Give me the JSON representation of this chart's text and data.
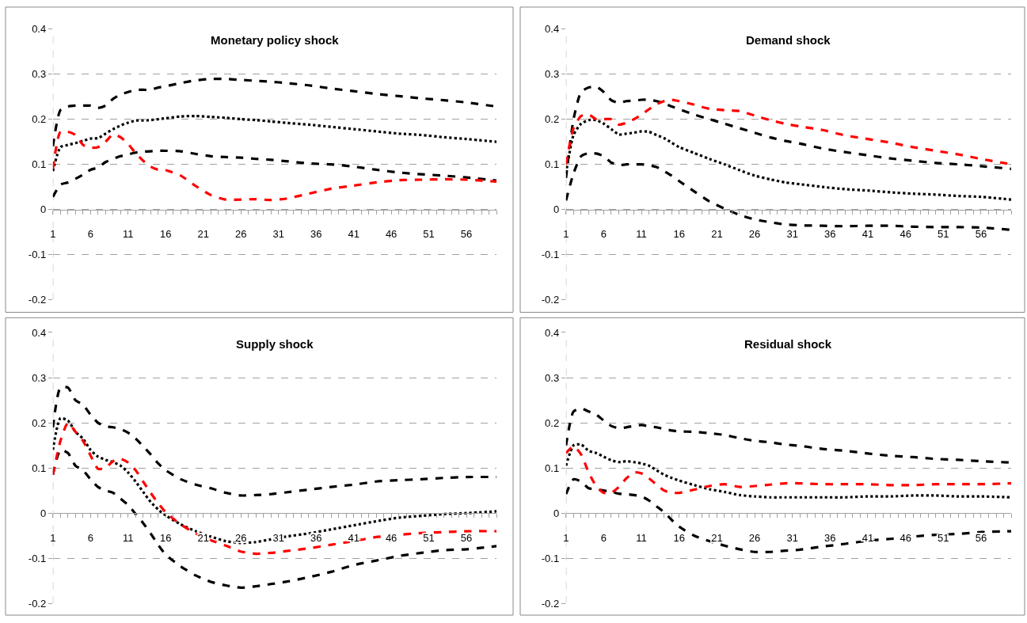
{
  "chart_data": [
    {
      "type": "line",
      "title": "Monetary policy shock",
      "x": [
        1,
        2,
        3,
        4,
        5,
        6,
        7,
        8,
        9,
        10,
        11,
        12,
        13,
        14,
        15,
        16,
        18,
        20,
        22,
        24,
        26,
        28,
        30,
        32,
        35,
        38,
        41,
        44,
        47,
        50,
        53,
        56,
        60
      ],
      "xlim": [
        1,
        60
      ],
      "xticks": [
        1,
        6,
        11,
        16,
        21,
        26,
        31,
        36,
        41,
        46,
        51,
        56
      ],
      "ylim": [
        -0.2,
        0.4
      ],
      "yticks": [
        -0.2,
        -0.1,
        0,
        0.1,
        0.2,
        0.3,
        0.4
      ],
      "grid": "y",
      "series": [
        {
          "color": "#000000",
          "line_style": "dashed",
          "values": [
            0.14,
            0.22,
            0.228,
            0.23,
            0.23,
            0.23,
            0.225,
            0.23,
            0.245,
            0.255,
            0.26,
            0.265,
            0.265,
            0.265,
            0.27,
            0.273,
            0.28,
            0.286,
            0.289,
            0.289,
            0.287,
            0.285,
            0.283,
            0.28,
            0.275,
            0.268,
            0.262,
            0.256,
            0.251,
            0.246,
            0.242,
            0.237,
            0.228
          ]
        },
        {
          "color": "#000000",
          "line_style": "dotted",
          "values": [
            0.085,
            0.138,
            0.143,
            0.147,
            0.152,
            0.157,
            0.158,
            0.168,
            0.178,
            0.186,
            0.192,
            0.197,
            0.197,
            0.198,
            0.2,
            0.202,
            0.206,
            0.207,
            0.205,
            0.203,
            0.2,
            0.198,
            0.195,
            0.192,
            0.188,
            0.183,
            0.178,
            0.173,
            0.168,
            0.165,
            0.16,
            0.156,
            0.15
          ]
        },
        {
          "color": "#000000",
          "line_style": "dashed",
          "values": [
            0.028,
            0.055,
            0.06,
            0.068,
            0.077,
            0.088,
            0.093,
            0.105,
            0.112,
            0.118,
            0.122,
            0.126,
            0.128,
            0.129,
            0.13,
            0.13,
            0.129,
            0.123,
            0.118,
            0.116,
            0.115,
            0.112,
            0.11,
            0.107,
            0.102,
            0.1,
            0.095,
            0.088,
            0.082,
            0.078,
            0.075,
            0.071,
            0.064
          ]
        },
        {
          "color": "#ff0000",
          "line_style": "dashed",
          "values": [
            0.09,
            0.172,
            0.172,
            0.165,
            0.143,
            0.137,
            0.138,
            0.15,
            0.166,
            0.16,
            0.145,
            0.125,
            0.108,
            0.095,
            0.088,
            0.087,
            0.075,
            0.052,
            0.032,
            0.022,
            0.022,
            0.023,
            0.021,
            0.024,
            0.035,
            0.046,
            0.053,
            0.06,
            0.065,
            0.066,
            0.067,
            0.066,
            0.062
          ]
        }
      ]
    },
    {
      "type": "line",
      "title": "Demand shock",
      "x": [
        1,
        2,
        3,
        4,
        5,
        6,
        7,
        8,
        9,
        10,
        11,
        12,
        13,
        14,
        15,
        16,
        18,
        20,
        22,
        24,
        26,
        28,
        30,
        32,
        35,
        38,
        41,
        44,
        47,
        50,
        53,
        56,
        60
      ],
      "xlim": [
        1,
        60
      ],
      "xticks": [
        1,
        6,
        11,
        16,
        21,
        26,
        31,
        36,
        41,
        46,
        51,
        56
      ],
      "ylim": [
        -0.2,
        0.4
      ],
      "yticks": [
        -0.2,
        -0.1,
        0,
        0.1,
        0.2,
        0.3,
        0.4
      ],
      "grid": "y",
      "series": [
        {
          "color": "#000000",
          "line_style": "dashed",
          "values": [
            0.07,
            0.2,
            0.26,
            0.27,
            0.272,
            0.26,
            0.242,
            0.236,
            0.24,
            0.241,
            0.243,
            0.243,
            0.24,
            0.235,
            0.228,
            0.222,
            0.21,
            0.2,
            0.19,
            0.18,
            0.17,
            0.16,
            0.152,
            0.146,
            0.135,
            0.127,
            0.12,
            0.113,
            0.108,
            0.103,
            0.1,
            0.096,
            0.09
          ]
        },
        {
          "color": "#000000",
          "line_style": "dotted",
          "values": [
            0.08,
            0.165,
            0.19,
            0.198,
            0.198,
            0.19,
            0.178,
            0.166,
            0.168,
            0.17,
            0.173,
            0.172,
            0.165,
            0.158,
            0.148,
            0.138,
            0.125,
            0.112,
            0.1,
            0.087,
            0.075,
            0.067,
            0.06,
            0.056,
            0.05,
            0.045,
            0.042,
            0.038,
            0.035,
            0.033,
            0.03,
            0.028,
            0.022
          ]
        },
        {
          "color": "#000000",
          "line_style": "dashed",
          "values": [
            0.02,
            0.08,
            0.118,
            0.125,
            0.124,
            0.118,
            0.104,
            0.098,
            0.1,
            0.1,
            0.1,
            0.098,
            0.094,
            0.085,
            0.075,
            0.063,
            0.04,
            0.018,
            0.002,
            -0.012,
            -0.022,
            -0.028,
            -0.033,
            -0.035,
            -0.036,
            -0.037,
            -0.036,
            -0.036,
            -0.038,
            -0.039,
            -0.039,
            -0.04,
            -0.045
          ]
        },
        {
          "color": "#ff0000",
          "line_style": "dashed",
          "values": [
            0.1,
            0.18,
            0.207,
            0.21,
            0.2,
            0.2,
            0.2,
            0.188,
            0.192,
            0.2,
            0.21,
            0.222,
            0.233,
            0.24,
            0.243,
            0.24,
            0.232,
            0.223,
            0.22,
            0.218,
            0.208,
            0.198,
            0.19,
            0.184,
            0.176,
            0.164,
            0.156,
            0.148,
            0.138,
            0.13,
            0.122,
            0.112,
            0.1
          ]
        }
      ]
    },
    {
      "type": "line",
      "title": "Supply shock",
      "x": [
        1,
        2,
        3,
        4,
        5,
        6,
        7,
        8,
        9,
        10,
        11,
        12,
        13,
        14,
        15,
        16,
        18,
        20,
        22,
        24,
        26,
        28,
        30,
        32,
        35,
        38,
        41,
        44,
        47,
        50,
        53,
        56,
        60
      ],
      "xlim": [
        1,
        60
      ],
      "xticks": [
        1,
        6,
        11,
        16,
        21,
        26,
        31,
        36,
        41,
        46,
        51,
        56
      ],
      "ylim": [
        -0.2,
        0.4
      ],
      "yticks": [
        -0.2,
        -0.1,
        0,
        0.1,
        0.2,
        0.3,
        0.4
      ],
      "grid": "y",
      "series": [
        {
          "color": "#000000",
          "line_style": "dashed",
          "values": [
            0.19,
            0.278,
            0.278,
            0.25,
            0.24,
            0.218,
            0.2,
            0.192,
            0.19,
            0.186,
            0.178,
            0.165,
            0.148,
            0.13,
            0.11,
            0.095,
            0.075,
            0.063,
            0.055,
            0.045,
            0.039,
            0.04,
            0.042,
            0.046,
            0.052,
            0.058,
            0.063,
            0.07,
            0.073,
            0.075,
            0.078,
            0.08,
            0.08
          ]
        },
        {
          "color": "#000000",
          "line_style": "dotted",
          "values": [
            0.14,
            0.21,
            0.205,
            0.18,
            0.165,
            0.14,
            0.125,
            0.118,
            0.113,
            0.105,
            0.09,
            0.07,
            0.047,
            0.025,
            0.008,
            -0.005,
            -0.025,
            -0.04,
            -0.052,
            -0.062,
            -0.066,
            -0.064,
            -0.058,
            -0.052,
            -0.045,
            -0.036,
            -0.027,
            -0.018,
            -0.01,
            -0.006,
            -0.002,
            0,
            0.004
          ]
        },
        {
          "color": "#000000",
          "line_style": "dashed",
          "values": [
            0.085,
            0.14,
            0.133,
            0.105,
            0.095,
            0.075,
            0.058,
            0.05,
            0.045,
            0.032,
            0.018,
            -0.002,
            -0.022,
            -0.045,
            -0.07,
            -0.092,
            -0.118,
            -0.138,
            -0.152,
            -0.16,
            -0.165,
            -0.162,
            -0.157,
            -0.152,
            -0.142,
            -0.13,
            -0.115,
            -0.105,
            -0.095,
            -0.088,
            -0.082,
            -0.08,
            -0.073
          ]
        },
        {
          "color": "#ff0000",
          "line_style": "dashed",
          "values": [
            0.085,
            0.16,
            0.2,
            0.18,
            0.16,
            0.128,
            0.098,
            0.1,
            0.115,
            0.12,
            0.112,
            0.095,
            0.07,
            0.045,
            0.022,
            0.002,
            -0.025,
            -0.045,
            -0.06,
            -0.072,
            -0.085,
            -0.09,
            -0.088,
            -0.084,
            -0.078,
            -0.07,
            -0.062,
            -0.053,
            -0.048,
            -0.044,
            -0.042,
            -0.04,
            -0.04
          ]
        }
      ]
    },
    {
      "type": "line",
      "title": "Residual shock",
      "x": [
        1,
        2,
        3,
        4,
        5,
        6,
        7,
        8,
        9,
        10,
        11,
        12,
        13,
        14,
        15,
        16,
        18,
        20,
        22,
        24,
        26,
        28,
        30,
        32,
        35,
        38,
        41,
        44,
        47,
        50,
        53,
        56,
        60
      ],
      "xlim": [
        1,
        60
      ],
      "xticks": [
        1,
        6,
        11,
        16,
        21,
        26,
        31,
        36,
        41,
        46,
        51,
        56
      ],
      "ylim": [
        -0.2,
        0.4
      ],
      "yticks": [
        -0.2,
        -0.1,
        0,
        0.1,
        0.2,
        0.3,
        0.4
      ],
      "grid": "y",
      "series": [
        {
          "color": "#000000",
          "line_style": "dashed",
          "values": [
            0.15,
            0.225,
            0.232,
            0.225,
            0.218,
            0.205,
            0.193,
            0.188,
            0.19,
            0.193,
            0.195,
            0.192,
            0.19,
            0.186,
            0.183,
            0.181,
            0.18,
            0.177,
            0.173,
            0.166,
            0.16,
            0.157,
            0.152,
            0.149,
            0.142,
            0.138,
            0.132,
            0.127,
            0.124,
            0.12,
            0.118,
            0.115,
            0.112
          ]
        },
        {
          "color": "#000000",
          "line_style": "dotted",
          "values": [
            0.105,
            0.15,
            0.152,
            0.138,
            0.133,
            0.125,
            0.117,
            0.113,
            0.115,
            0.113,
            0.11,
            0.105,
            0.095,
            0.085,
            0.078,
            0.072,
            0.062,
            0.053,
            0.047,
            0.04,
            0.037,
            0.035,
            0.035,
            0.035,
            0.035,
            0.035,
            0.037,
            0.037,
            0.039,
            0.039,
            0.037,
            0.037,
            0.035
          ]
        },
        {
          "color": "#000000",
          "line_style": "dashed",
          "values": [
            0.042,
            0.075,
            0.07,
            0.055,
            0.053,
            0.05,
            0.047,
            0.043,
            0.042,
            0.04,
            0.037,
            0.028,
            0.015,
            0.002,
            -0.015,
            -0.03,
            -0.05,
            -0.062,
            -0.072,
            -0.08,
            -0.086,
            -0.086,
            -0.083,
            -0.081,
            -0.074,
            -0.068,
            -0.061,
            -0.057,
            -0.052,
            -0.048,
            -0.046,
            -0.042,
            -0.04
          ]
        },
        {
          "color": "#ff0000",
          "line_style": "dashed",
          "values": [
            0.133,
            0.148,
            0.13,
            0.09,
            0.06,
            0.045,
            0.045,
            0.058,
            0.077,
            0.09,
            0.088,
            0.077,
            0.063,
            0.05,
            0.045,
            0.045,
            0.052,
            0.06,
            0.064,
            0.058,
            0.06,
            0.063,
            0.066,
            0.066,
            0.064,
            0.064,
            0.064,
            0.062,
            0.062,
            0.064,
            0.064,
            0.064,
            0.066
          ]
        }
      ]
    }
  ]
}
